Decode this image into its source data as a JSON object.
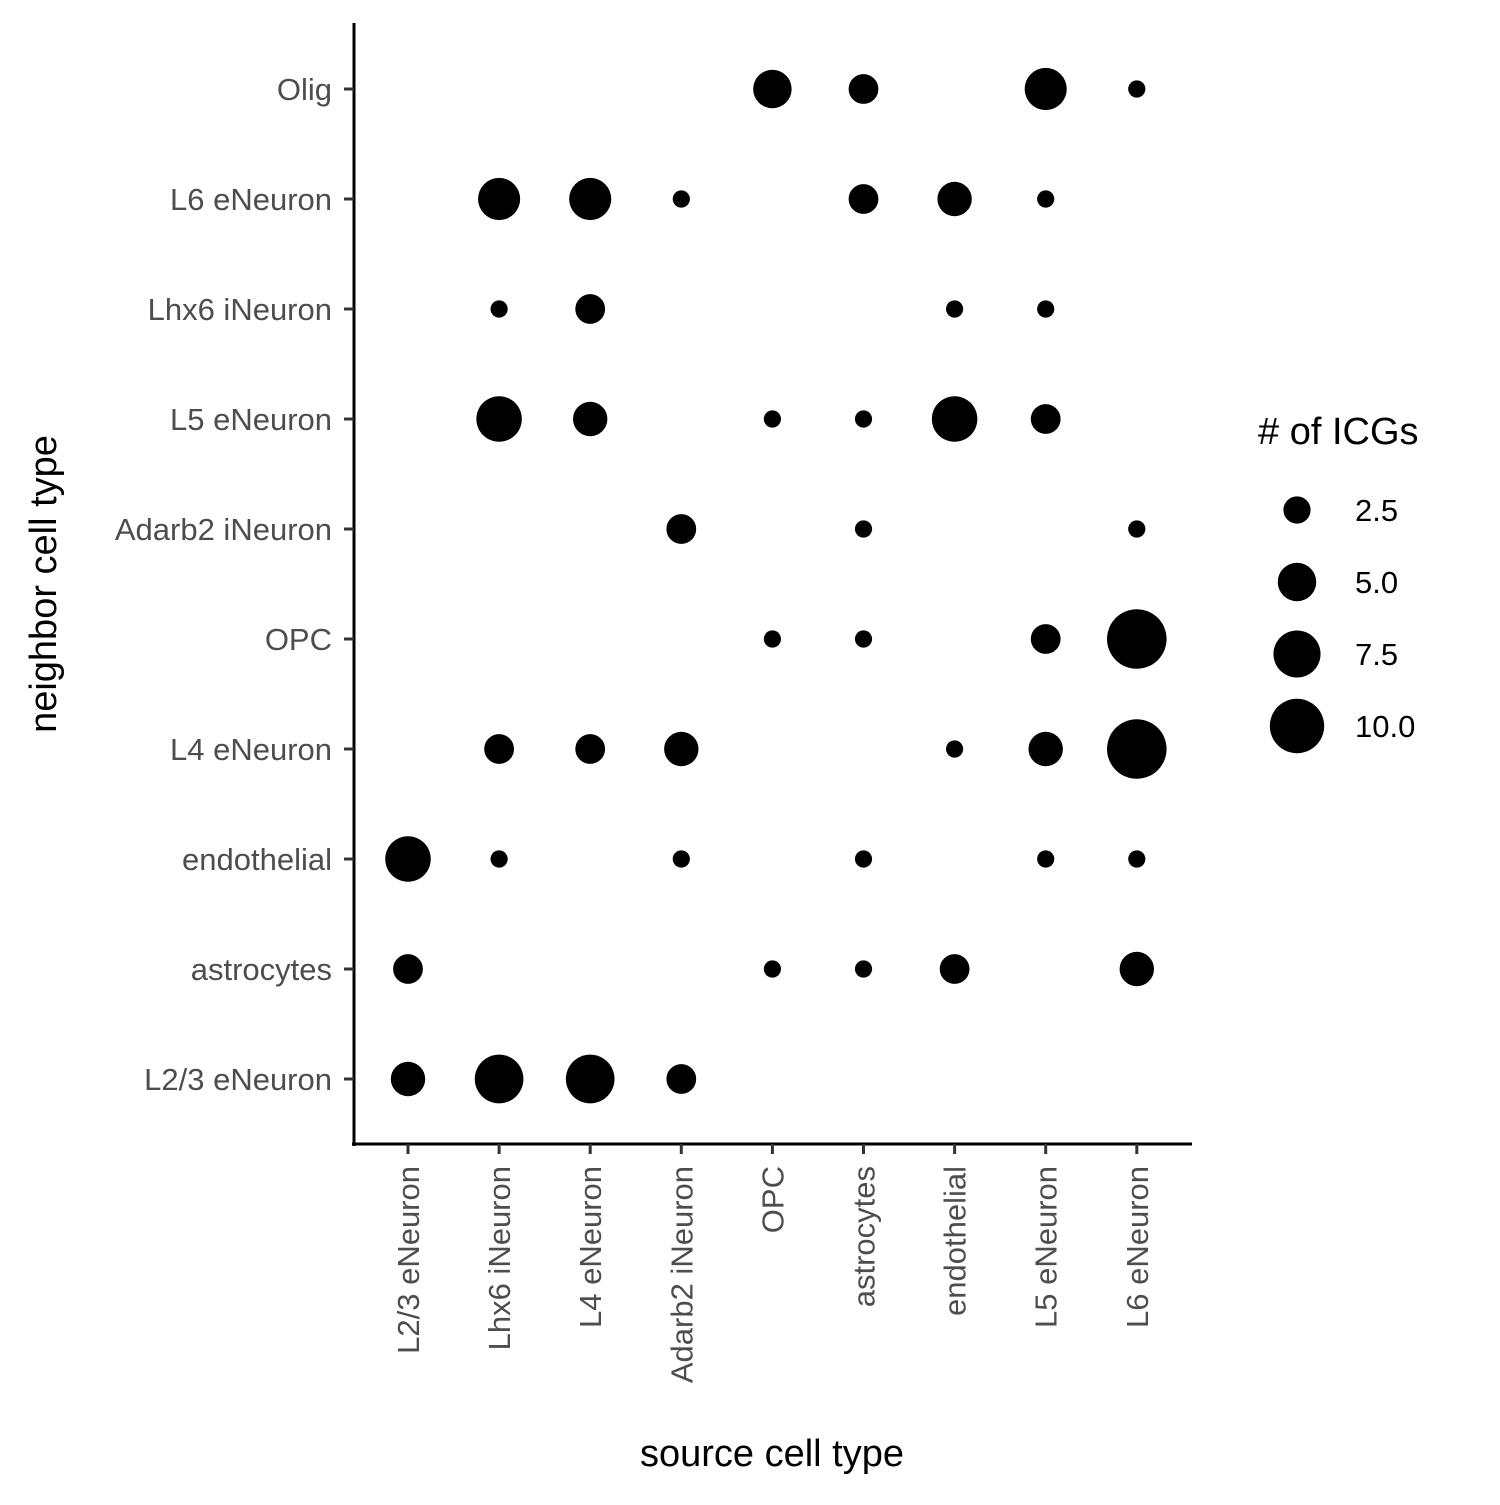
{
  "chart_data": {
    "type": "scatter",
    "title": "",
    "xlabel": "source cell type",
    "ylabel": "neighbor cell type",
    "x_categories": [
      "L2/3 eNeuron",
      "Lhx6 iNeuron",
      "L4 eNeuron",
      "Adarb2 iNeuron",
      "OPC",
      "astrocytes",
      "endothelial",
      "L5 eNeuron",
      "L6 eNeuron"
    ],
    "y_categories": [
      "L2/3 eNeuron",
      "astrocytes",
      "endothelial",
      "L4 eNeuron",
      "OPC",
      "Adarb2 iNeuron",
      "L5 eNeuron",
      "Lhx6 iNeuron",
      "L6 eNeuron",
      "Olig"
    ],
    "size_variable": "# of ICGs",
    "point_color": "#000000",
    "grid": false,
    "legend": {
      "position": "right",
      "title": "# of ICGs",
      "breaks": [
        2.5,
        5.0,
        7.5,
        10.0
      ],
      "labels": [
        "2.5",
        "5.0",
        "7.5",
        "10.0"
      ]
    },
    "points": [
      {
        "x": "OPC",
        "y": "Olig",
        "size": 5
      },
      {
        "x": "astrocytes",
        "y": "Olig",
        "size": 3
      },
      {
        "x": "L5 eNeuron",
        "y": "Olig",
        "size": 6
      },
      {
        "x": "L6 eNeuron",
        "y": "Olig",
        "size": 1
      },
      {
        "x": "Lhx6 iNeuron",
        "y": "L6 eNeuron",
        "size": 6
      },
      {
        "x": "L4 eNeuron",
        "y": "L6 eNeuron",
        "size": 6
      },
      {
        "x": "Adarb2 iNeuron",
        "y": "L6 eNeuron",
        "size": 1
      },
      {
        "x": "astrocytes",
        "y": "L6 eNeuron",
        "size": 3
      },
      {
        "x": "endothelial",
        "y": "L6 eNeuron",
        "size": 4
      },
      {
        "x": "L5 eNeuron",
        "y": "L6 eNeuron",
        "size": 1
      },
      {
        "x": "Lhx6 iNeuron",
        "y": "Lhx6 iNeuron",
        "size": 1
      },
      {
        "x": "L4 eNeuron",
        "y": "Lhx6 iNeuron",
        "size": 3
      },
      {
        "x": "endothelial",
        "y": "Lhx6 iNeuron",
        "size": 1
      },
      {
        "x": "L5 eNeuron",
        "y": "Lhx6 iNeuron",
        "size": 1
      },
      {
        "x": "Lhx6 iNeuron",
        "y": "L5 eNeuron",
        "size": 7
      },
      {
        "x": "L4 eNeuron",
        "y": "L5 eNeuron",
        "size": 4
      },
      {
        "x": "OPC",
        "y": "L5 eNeuron",
        "size": 1
      },
      {
        "x": "astrocytes",
        "y": "L5 eNeuron",
        "size": 1
      },
      {
        "x": "endothelial",
        "y": "L5 eNeuron",
        "size": 7
      },
      {
        "x": "L5 eNeuron",
        "y": "L5 eNeuron",
        "size": 3
      },
      {
        "x": "Adarb2 iNeuron",
        "y": "Adarb2 iNeuron",
        "size": 3
      },
      {
        "x": "astrocytes",
        "y": "Adarb2 iNeuron",
        "size": 1
      },
      {
        "x": "L6 eNeuron",
        "y": "Adarb2 iNeuron",
        "size": 1
      },
      {
        "x": "OPC",
        "y": "OPC",
        "size": 1
      },
      {
        "x": "astrocytes",
        "y": "OPC",
        "size": 1
      },
      {
        "x": "L5 eNeuron",
        "y": "OPC",
        "size": 3
      },
      {
        "x": "L6 eNeuron",
        "y": "OPC",
        "size": 12
      },
      {
        "x": "Lhx6 iNeuron",
        "y": "L4 eNeuron",
        "size": 3
      },
      {
        "x": "L4 eNeuron",
        "y": "L4 eNeuron",
        "size": 3
      },
      {
        "x": "Adarb2 iNeuron",
        "y": "L4 eNeuron",
        "size": 4
      },
      {
        "x": "endothelial",
        "y": "L4 eNeuron",
        "size": 1
      },
      {
        "x": "L5 eNeuron",
        "y": "L4 eNeuron",
        "size": 4
      },
      {
        "x": "L6 eNeuron",
        "y": "L4 eNeuron",
        "size": 12
      },
      {
        "x": "L2/3 eNeuron",
        "y": "endothelial",
        "size": 7
      },
      {
        "x": "Lhx6 iNeuron",
        "y": "endothelial",
        "size": 1
      },
      {
        "x": "Adarb2 iNeuron",
        "y": "endothelial",
        "size": 1
      },
      {
        "x": "astrocytes",
        "y": "endothelial",
        "size": 1
      },
      {
        "x": "L5 eNeuron",
        "y": "endothelial",
        "size": 1
      },
      {
        "x": "L6 eNeuron",
        "y": "endothelial",
        "size": 1
      },
      {
        "x": "L2/3 eNeuron",
        "y": "astrocytes",
        "size": 3
      },
      {
        "x": "OPC",
        "y": "astrocytes",
        "size": 1
      },
      {
        "x": "astrocytes",
        "y": "astrocytes",
        "size": 1
      },
      {
        "x": "endothelial",
        "y": "astrocytes",
        "size": 3
      },
      {
        "x": "L6 eNeuron",
        "y": "astrocytes",
        "size": 4
      },
      {
        "x": "L2/3 eNeuron",
        "y": "L2/3 eNeuron",
        "size": 4
      },
      {
        "x": "Lhx6 iNeuron",
        "y": "L2/3 eNeuron",
        "size": 8
      },
      {
        "x": "L4 eNeuron",
        "y": "L2/3 eNeuron",
        "size": 8
      },
      {
        "x": "Adarb2 iNeuron",
        "y": "L2/3 eNeuron",
        "size": 3
      }
    ]
  }
}
